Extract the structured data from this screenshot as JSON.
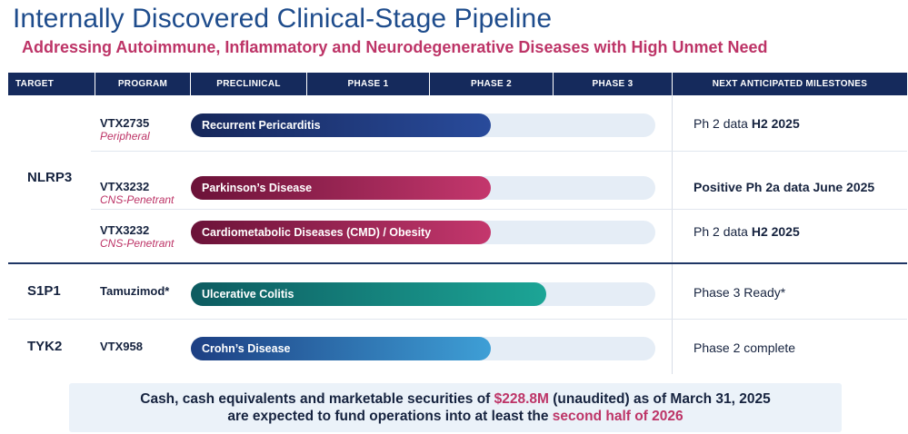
{
  "title": "Internally Discovered Clinical-Stage Pipeline",
  "subtitle": "Addressing Autoimmune, Inflammatory and Neurodegenerative Diseases with High Unmet Need",
  "header": {
    "target": "TARGET",
    "program": "PROGRAM",
    "preclinical": "PRECLINICAL",
    "phase1": "PHASE 1",
    "phase2": "PHASE 2",
    "phase3": "PHASE 3",
    "milestones": "NEXT ANTICIPATED MILESTONES"
  },
  "targets": {
    "nlrp3": "NLRP3",
    "s1p1": "S1P1",
    "tyk2": "TYK2"
  },
  "rows": [
    {
      "program": "VTX2735",
      "program_type": "Peripheral",
      "indication": "Recurrent Pericarditis",
      "progress": 0.645,
      "bar_color": "#294b9b",
      "milestone_prefix": "Ph 2 data ",
      "milestone_emphasis": "H2 2025"
    },
    {
      "program": "VTX3232",
      "program_type": "CNS-Penetrant",
      "indication": "Parkinson’s Disease",
      "progress": 0.645,
      "bar_color": "#c4376d",
      "milestone_prefix": "",
      "milestone_emphasis": "Positive Ph 2a data June 2025"
    },
    {
      "program": "VTX3232",
      "program_type": "CNS-Penetrant",
      "indication": "Cardiometabolic Diseases (CMD) / Obesity",
      "progress": 0.645,
      "bar_color": "#c4376d",
      "milestone_prefix": "Ph 2 data ",
      "milestone_emphasis": "H2 2025"
    },
    {
      "program": "Tamuzimod*",
      "program_type": "",
      "indication": "Ulcerative Colitis",
      "progress": 0.765,
      "bar_color": "#1ca596",
      "milestone_prefix": "Phase 3 Ready*",
      "milestone_emphasis": ""
    },
    {
      "program": "VTX958",
      "program_type": "",
      "indication": "Crohn’s Disease",
      "progress": 0.645,
      "bar_color": "#3e9fd6",
      "milestone_prefix": "Phase 2 complete",
      "milestone_emphasis": ""
    }
  ],
  "cash": {
    "line1_prefix": "Cash, cash equivalents and marketable securities of ",
    "amount": "$228.8M",
    "line1_suffix": " (unaudited) as of March 31, 2025",
    "line2_prefix": "are expected to fund operations into at least the ",
    "line2_emphasis": "second half of 2026"
  },
  "colors": {
    "title": "#1e4c8c",
    "accent": "#bd3467",
    "header_bg": "#152a5c",
    "track": "#e5edf6"
  }
}
